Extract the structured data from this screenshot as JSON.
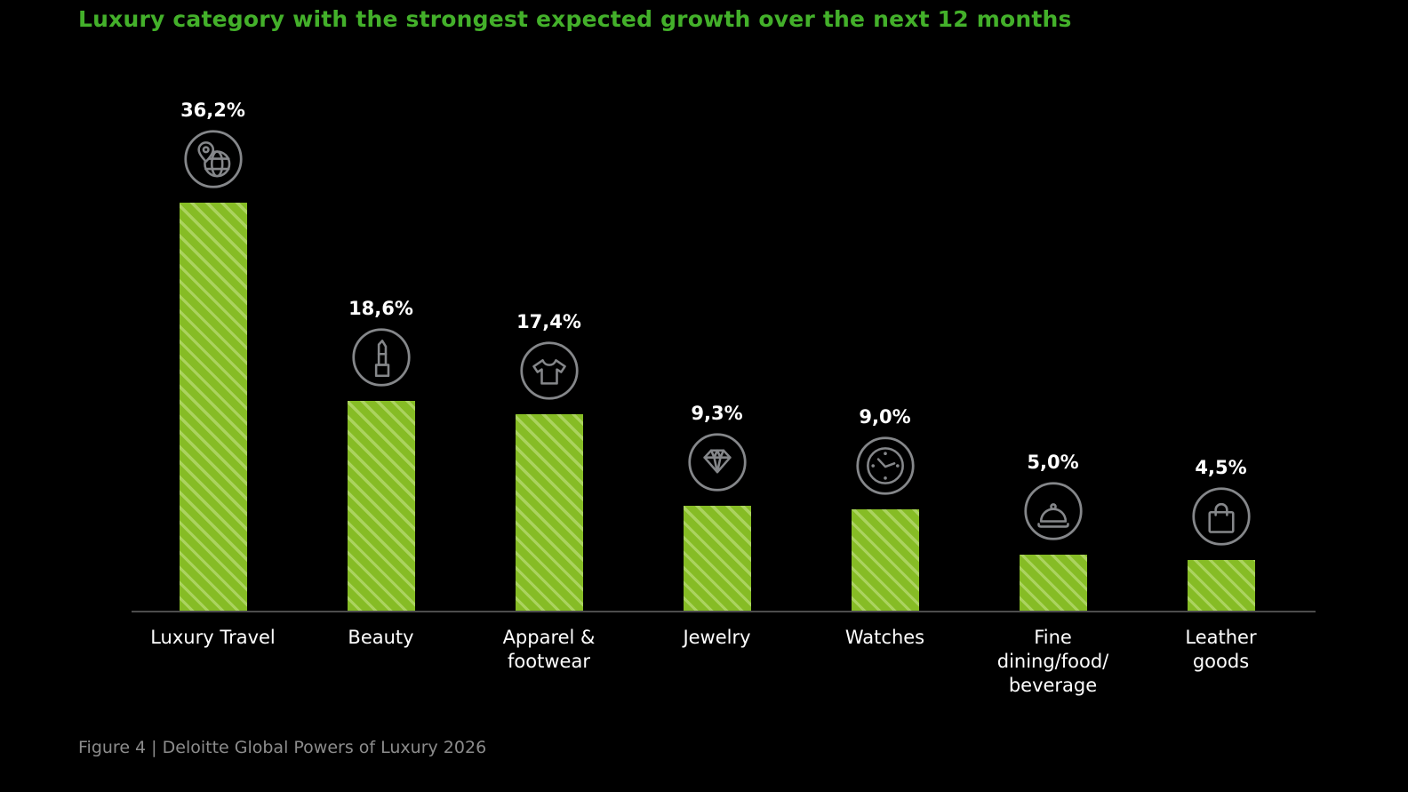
{
  "page": {
    "title": "Luxury category with the strongest expected growth over the next 12 months",
    "footer": "Figure 4 | Deloitte Global Powers of Luxury 2026"
  },
  "colors": {
    "background": "#000000",
    "title_green": "#43b02a",
    "bar_fill": "#86bc25",
    "bar_stripe": "#abd35f",
    "axis_line": "#4d4d4d",
    "label_text": "#ffffff",
    "icon_stroke": "#85878a",
    "footer_text": "#8c8c8c"
  },
  "chart_data": {
    "type": "bar",
    "title": "Luxury category with the strongest expected growth over the next 12 months",
    "categories": [
      "Luxury Travel",
      "Beauty",
      "Apparel & footwear",
      "Jewelry",
      "Watches",
      "Fine dining/food/beverage",
      "Leather goods"
    ],
    "values": [
      36.2,
      18.6,
      17.4,
      9.3,
      9.0,
      5.0,
      4.5
    ],
    "value_labels": [
      "36,2%",
      "18,6%",
      "17,4%",
      "9,3%",
      "9,0%",
      "5,0%",
      "4,5%"
    ],
    "category_lines": [
      [
        "Luxury Travel"
      ],
      [
        "Beauty"
      ],
      [
        "Apparel &",
        "footwear"
      ],
      [
        "Jewelry"
      ],
      [
        "Watches"
      ],
      [
        "Fine",
        "dining/food/",
        "beverage"
      ],
      [
        "Leather",
        "goods"
      ]
    ],
    "icons": [
      "globe-location-icon",
      "lipstick-icon",
      "tshirt-icon",
      "diamond-icon",
      "watch-icon",
      "cloche-icon",
      "handbag-icon"
    ],
    "xlabel": "",
    "ylabel": "",
    "ylim": [
      0,
      40
    ],
    "grid": false,
    "legend": false,
    "bar_pattern": "diagonal-stripes-45deg",
    "unit": "%",
    "decimal_separator": ","
  }
}
